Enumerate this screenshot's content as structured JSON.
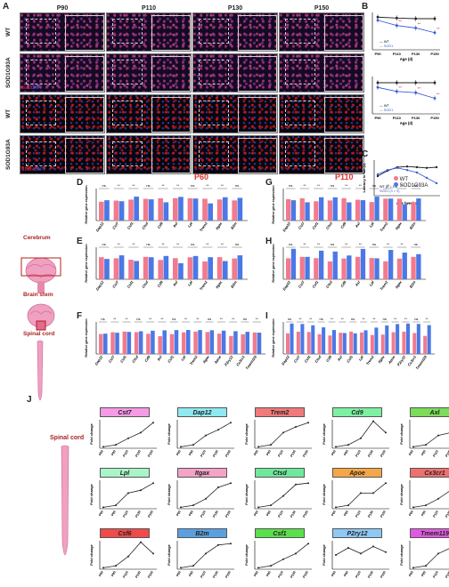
{
  "panelA": {
    "letter": "A",
    "columns": [
      "P90",
      "P110",
      "P130",
      "P150"
    ],
    "rows": [
      {
        "label": "WT",
        "stain": "pink"
      },
      {
        "label": "SOD1G93A",
        "stain": "pink"
      },
      {
        "label": "WT",
        "stain": "red"
      },
      {
        "label": "SOD1G93A",
        "stain": "red"
      }
    ],
    "stain_top": {
      "marker": "Iba1",
      "dapi": "DAPI"
    },
    "stain_bottom": {
      "marker": "CD68",
      "dapi": "DAPI"
    }
  },
  "panelB": {
    "letter": "B",
    "x_label": "Age (d)",
    "legend": [
      "WT",
      "SOD1"
    ],
    "x": [
      "P90",
      "P110",
      "P130",
      "P150"
    ]
  },
  "panelC": {
    "letter": "C",
    "x_label": "Age (weeks)",
    "y_label": "Latency to fall (s)",
    "legend": [
      "WT (n = 10)",
      "SOD1 (n = 9)"
    ]
  },
  "tissues": [
    "Cerebrum",
    "Brain stem",
    "Spinal cord"
  ],
  "panels_DI": {
    "titles": {
      "left": "P60",
      "right": "P110"
    },
    "legend": [
      "WT",
      "SOD1G93A"
    ],
    "y_label": "Relative gene expression",
    "letters": [
      "D",
      "E",
      "F",
      "G",
      "H",
      "I"
    ],
    "genes_short": [
      "Dap12",
      "Cst7",
      "Csf1",
      "Ctsd",
      "Cd9",
      "Axl",
      "Lpl",
      "Trem2",
      "Itgax",
      "B2m"
    ],
    "genes_long": [
      "Dap12",
      "Cst7",
      "Csf1",
      "Ctsd",
      "Cd9",
      "Axl",
      "Csf1",
      "Lpl",
      "Trem2",
      "Itgax",
      "Apoe",
      "P2ry12",
      "Cx3cr1",
      "Tmem119"
    ]
  },
  "colors": {
    "wt": "#f27a8e",
    "sod1": "#4a78e6",
    "micro_bg": "#0a0612"
  },
  "panelJ": {
    "letter": "J",
    "tissue": "Spinal cord",
    "y_label": "Fold change",
    "ages": [
      "P60",
      "P90",
      "P110",
      "P130",
      "P150"
    ],
    "genes": [
      {
        "name": "Cst7",
        "color": "#f59be6"
      },
      {
        "name": "Dap12",
        "color": "#8fe9f0"
      },
      {
        "name": "Trem2",
        "color": "#f07a7a"
      },
      {
        "name": "Cd9",
        "color": "#7ef0a2"
      },
      {
        "name": "Axl",
        "color": "#7ddc5a"
      },
      {
        "name": "Lpl",
        "color": "#a8f5c8"
      },
      {
        "name": "Itgax",
        "color": "#f5a3c8"
      },
      {
        "name": "Ctsd",
        "color": "#6ee89a"
      },
      {
        "name": "Apoe",
        "color": "#f5a646"
      },
      {
        "name": "Cx3cr1",
        "color": "#f07070"
      },
      {
        "name": "Csf6",
        "color": "#f04a4a"
      },
      {
        "name": "B2m",
        "color": "#5aa0e0"
      },
      {
        "name": "Csf1",
        "color": "#5ae04a"
      },
      {
        "name": "P2ry12",
        "color": "#8ec8f5"
      },
      {
        "name": "Tmem119",
        "color": "#e05ae0"
      }
    ]
  }
}
